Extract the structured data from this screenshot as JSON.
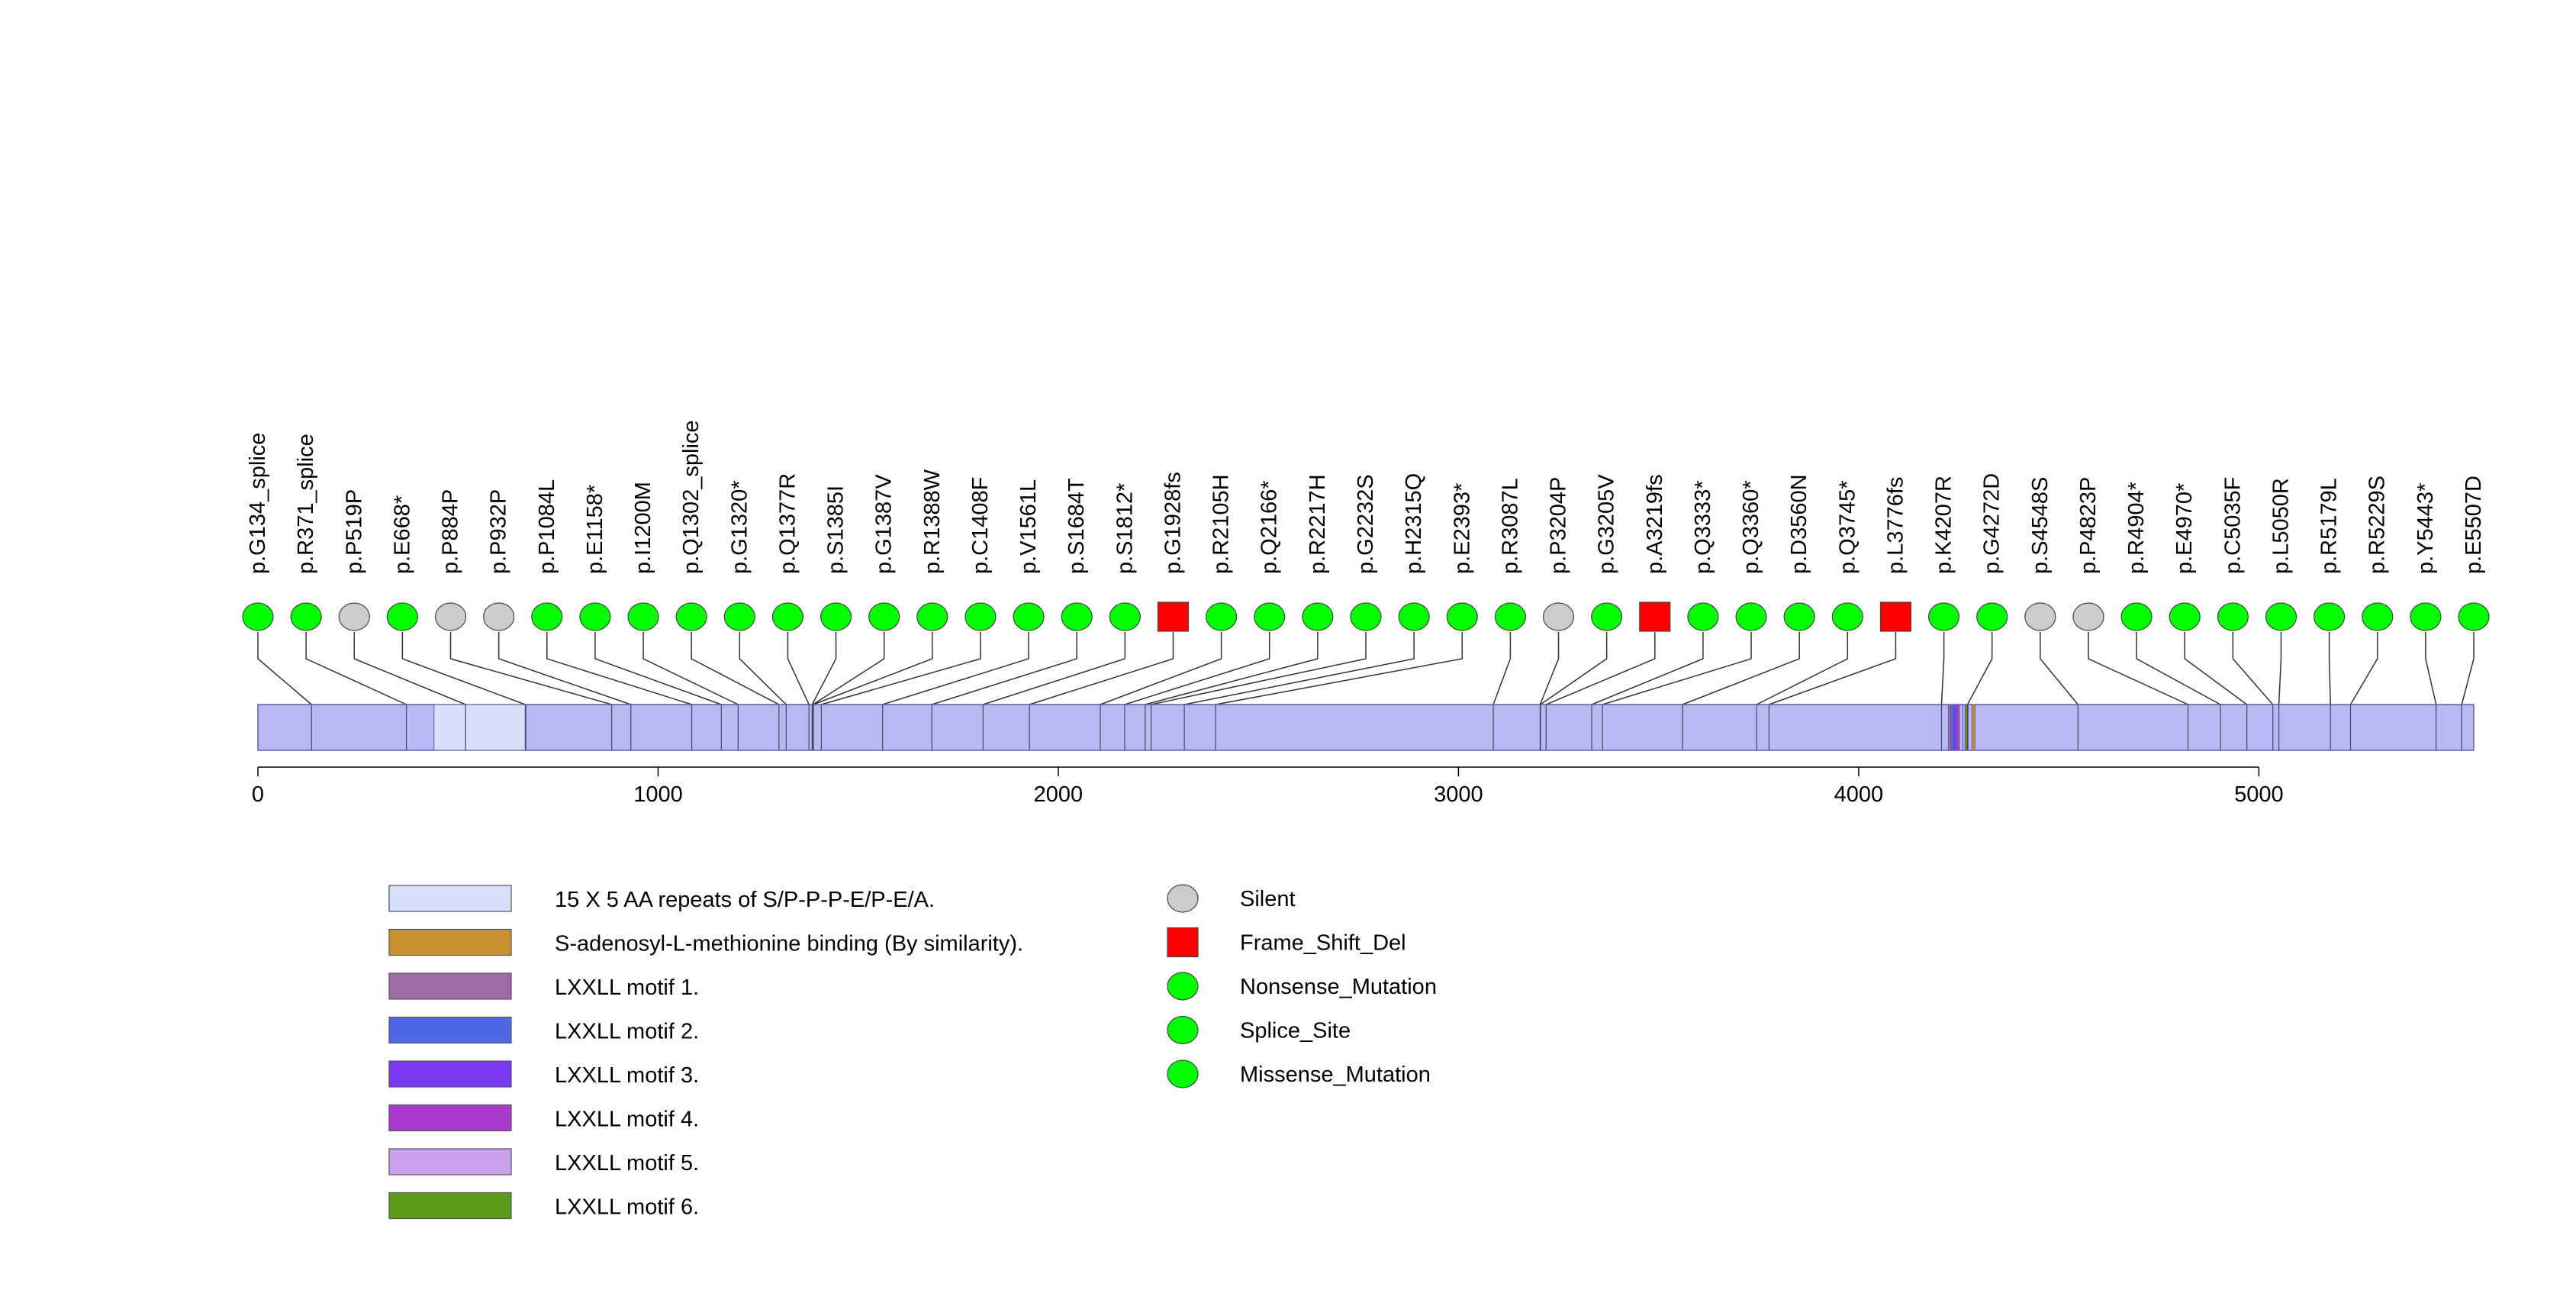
{
  "chart_data": {
    "type": "lollipop",
    "protein_length": 5537,
    "axis": {
      "ticks": [
        0,
        1000,
        2000,
        3000,
        4000,
        5000
      ],
      "range": [
        0,
        5537
      ]
    },
    "domains": [
      {
        "name": "15 X 5 AA repeats of S/P-P-P-E/P-E/A.",
        "start": 440,
        "end": 670,
        "color": "#d6e0fb"
      },
      {
        "name": "S-adenosyl-L-methionine binding (By similarity).",
        "start": 4283,
        "end": 4290,
        "color": "#c8902e"
      },
      {
        "name": "LXXLL motif 1.",
        "start": 4224,
        "end": 4228,
        "color": "#a06aa8"
      },
      {
        "name": "LXXLL motif 2.",
        "start": 4230,
        "end": 4234,
        "color": "#4f68e6"
      },
      {
        "name": "LXXLL motif 3.",
        "start": 4236,
        "end": 4240,
        "color": "#7a3af0"
      },
      {
        "name": "LXXLL motif 4.",
        "start": 4244,
        "end": 4248,
        "color": "#a83ad0"
      },
      {
        "name": "LXXLL motif 5.",
        "start": 4260,
        "end": 4264,
        "color": "#c8a0ee"
      },
      {
        "name": "LXXLL motif 6.",
        "start": 4266,
        "end": 4270,
        "color": "#5c9a1a"
      }
    ],
    "backbone_color": "#b8b8f5",
    "mutations": [
      {
        "label": "p.G134_splice",
        "position": 134,
        "type": "Splice_Site"
      },
      {
        "label": "p.R371_splice",
        "position": 371,
        "type": "Splice_Site"
      },
      {
        "label": "p.P519P",
        "position": 519,
        "type": "Silent"
      },
      {
        "label": "p.E668*",
        "position": 668,
        "type": "Nonsense_Mutation"
      },
      {
        "label": "p.P884P",
        "position": 884,
        "type": "Silent"
      },
      {
        "label": "p.P932P",
        "position": 932,
        "type": "Silent"
      },
      {
        "label": "p.P1084L",
        "position": 1084,
        "type": "Missense_Mutation"
      },
      {
        "label": "p.E1158*",
        "position": 1158,
        "type": "Nonsense_Mutation"
      },
      {
        "label": "p.I1200M",
        "position": 1200,
        "type": "Missense_Mutation"
      },
      {
        "label": "p.Q1302_splice",
        "position": 1302,
        "type": "Splice_Site"
      },
      {
        "label": "p.G1320*",
        "position": 1320,
        "type": "Nonsense_Mutation"
      },
      {
        "label": "p.Q1377R",
        "position": 1377,
        "type": "Missense_Mutation"
      },
      {
        "label": "p.S1385I",
        "position": 1385,
        "type": "Missense_Mutation"
      },
      {
        "label": "p.G1387V",
        "position": 1387,
        "type": "Missense_Mutation"
      },
      {
        "label": "p.R1388W",
        "position": 1388,
        "type": "Missense_Mutation"
      },
      {
        "label": "p.C1408F",
        "position": 1408,
        "type": "Missense_Mutation"
      },
      {
        "label": "p.V1561L",
        "position": 1561,
        "type": "Missense_Mutation"
      },
      {
        "label": "p.S1684T",
        "position": 1684,
        "type": "Missense_Mutation"
      },
      {
        "label": "p.S1812*",
        "position": 1812,
        "type": "Nonsense_Mutation"
      },
      {
        "label": "p.G1928fs",
        "position": 1928,
        "type": "Frame_Shift_Del"
      },
      {
        "label": "p.R2105H",
        "position": 2105,
        "type": "Missense_Mutation"
      },
      {
        "label": "p.Q2166*",
        "position": 2166,
        "type": "Nonsense_Mutation"
      },
      {
        "label": "p.R2217H",
        "position": 2217,
        "type": "Missense_Mutation"
      },
      {
        "label": "p.G2232S",
        "position": 2232,
        "type": "Missense_Mutation"
      },
      {
        "label": "p.H2315Q",
        "position": 2315,
        "type": "Missense_Mutation"
      },
      {
        "label": "p.E2393*",
        "position": 2393,
        "type": "Nonsense_Mutation"
      },
      {
        "label": "p.R3087L",
        "position": 3087,
        "type": "Missense_Mutation"
      },
      {
        "label": "p.P3204P",
        "position": 3204,
        "type": "Silent"
      },
      {
        "label": "p.G3205V",
        "position": 3205,
        "type": "Missense_Mutation"
      },
      {
        "label": "p.A3219fs",
        "position": 3219,
        "type": "Frame_Shift_Del"
      },
      {
        "label": "p.Q3333*",
        "position": 3333,
        "type": "Nonsense_Mutation"
      },
      {
        "label": "p.Q3360*",
        "position": 3360,
        "type": "Nonsense_Mutation"
      },
      {
        "label": "p.D3560N",
        "position": 3560,
        "type": "Missense_Mutation"
      },
      {
        "label": "p.Q3745*",
        "position": 3745,
        "type": "Nonsense_Mutation"
      },
      {
        "label": "p.L3776fs",
        "position": 3776,
        "type": "Frame_Shift_Del"
      },
      {
        "label": "p.K4207R",
        "position": 4207,
        "type": "Missense_Mutation"
      },
      {
        "label": "p.G4272D",
        "position": 4272,
        "type": "Missense_Mutation"
      },
      {
        "label": "p.S4548S",
        "position": 4548,
        "type": "Silent"
      },
      {
        "label": "p.P4823P",
        "position": 4823,
        "type": "Silent"
      },
      {
        "label": "p.R4904*",
        "position": 4904,
        "type": "Nonsense_Mutation"
      },
      {
        "label": "p.E4970*",
        "position": 4970,
        "type": "Nonsense_Mutation"
      },
      {
        "label": "p.C5035F",
        "position": 5035,
        "type": "Missense_Mutation"
      },
      {
        "label": "p.L5050R",
        "position": 5050,
        "type": "Missense_Mutation"
      },
      {
        "label": "p.R5179L",
        "position": 5179,
        "type": "Missense_Mutation"
      },
      {
        "label": "p.R5229S",
        "position": 5229,
        "type": "Missense_Mutation"
      },
      {
        "label": "p.Y5443*",
        "position": 5443,
        "type": "Nonsense_Mutation"
      },
      {
        "label": "p.E5507D",
        "position": 5507,
        "type": "Missense_Mutation"
      }
    ],
    "mutation_types": [
      {
        "name": "Silent",
        "shape": "circle",
        "color": "#cccccc"
      },
      {
        "name": "Frame_Shift_Del",
        "shape": "square",
        "color": "#ff0000"
      },
      {
        "name": "Nonsense_Mutation",
        "shape": "circle",
        "color": "#00ff00"
      },
      {
        "name": "Splice_Site",
        "shape": "circle",
        "color": "#00ff00"
      },
      {
        "name": "Missense_Mutation",
        "shape": "circle",
        "color": "#00ff00"
      }
    ]
  }
}
